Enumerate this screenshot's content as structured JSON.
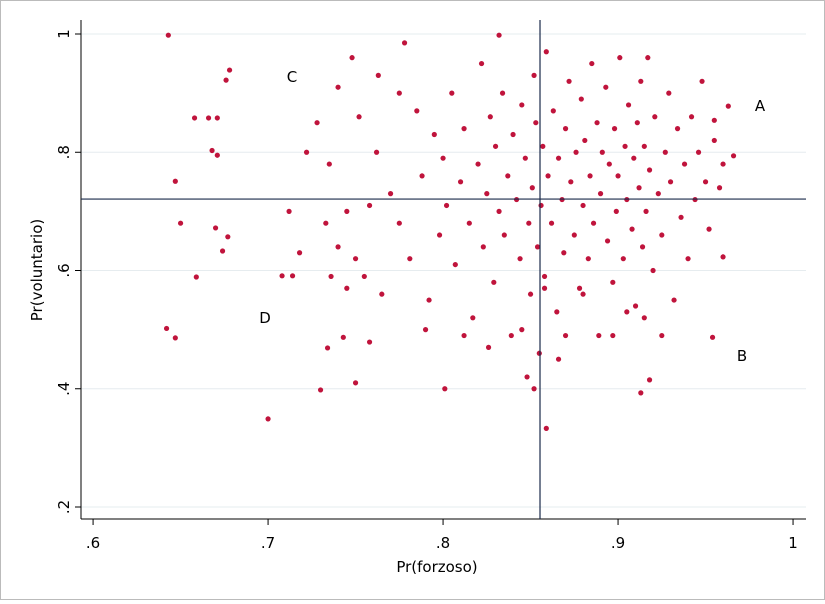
{
  "chart_data": {
    "type": "scatter",
    "x_label": "Pr(forzoso)",
    "y_label": "Pr(voluntario)",
    "color": "#c0143c",
    "grid": true,
    "xlim": [
      0.5931,
      1.0074
    ],
    "ylim": [
      0.1797,
      1.0237
    ],
    "xticks": [
      {
        "value": 0.6,
        "label": ".6"
      },
      {
        "value": 0.7,
        "label": ".7"
      },
      {
        "value": 0.8,
        "label": ".8"
      },
      {
        "value": 0.9,
        "label": ".9"
      },
      1
    ],
    "yticks": [
      {
        "value": 0.2,
        "label": ".2"
      },
      {
        "value": 0.4,
        "label": ".4"
      },
      {
        "value": 0.6,
        "label": ".6"
      },
      {
        "value": 0.8,
        "label": ".8"
      },
      1
    ],
    "reference_lines": {
      "x": 0.8554,
      "y": 0.7208
    },
    "annotations": [
      "C",
      "A",
      "D",
      "B"
    ],
    "x": [
      0.643,
      0.647,
      0.65,
      0.658,
      0.666,
      0.671,
      0.668,
      0.671,
      0.676,
      0.678,
      0.642,
      0.647,
      0.659,
      0.67,
      0.674,
      0.677,
      0.7,
      0.714,
      0.708,
      0.73,
      0.75,
      0.734,
      0.743,
      0.758,
      0.778,
      0.832,
      0.859,
      0.913,
      0.918,
      0.954,
      0.96,
      0.955,
      0.963,
      0.966,
      0.762,
      0.77,
      0.775,
      0.781,
      0.785,
      0.788,
      0.792,
      0.795,
      0.798,
      0.8,
      0.802,
      0.805,
      0.807,
      0.81,
      0.812,
      0.815,
      0.817,
      0.82,
      0.822,
      0.823,
      0.825,
      0.827,
      0.829,
      0.83,
      0.832,
      0.834,
      0.835,
      0.837,
      0.839,
      0.84,
      0.842,
      0.844,
      0.845,
      0.847,
      0.849,
      0.85,
      0.851,
      0.852,
      0.853,
      0.854,
      0.856,
      0.857,
      0.858,
      0.859,
      0.86,
      0.862,
      0.863,
      0.865,
      0.866,
      0.868,
      0.869,
      0.87,
      0.872,
      0.873,
      0.875,
      0.876,
      0.878,
      0.879,
      0.88,
      0.881,
      0.883,
      0.884,
      0.885,
      0.886,
      0.888,
      0.889,
      0.89,
      0.891,
      0.893,
      0.894,
      0.895,
      0.897,
      0.898,
      0.899,
      0.9,
      0.901,
      0.903,
      0.904,
      0.905,
      0.906,
      0.908,
      0.909,
      0.91,
      0.911,
      0.912,
      0.913,
      0.914,
      0.915,
      0.916,
      0.917,
      0.918,
      0.92,
      0.921,
      0.923,
      0.925,
      0.927,
      0.929,
      0.93,
      0.932,
      0.934,
      0.936,
      0.938,
      0.94,
      0.942,
      0.944,
      0.946,
      0.948,
      0.95,
      0.952,
      0.955,
      0.958,
      0.96,
      0.763,
      0.748,
      0.752,
      0.745,
      0.74,
      0.735,
      0.728,
      0.755,
      0.758,
      0.765,
      0.74,
      0.75,
      0.733,
      0.722,
      0.712,
      0.718,
      0.745,
      0.736,
      0.775,
      0.79,
      0.801,
      0.812,
      0.826,
      0.845,
      0.848,
      0.852,
      0.866,
      0.87,
      0.88,
      0.897,
      0.905,
      0.915,
      0.925,
      0.855,
      0.858
    ],
    "values": [
      0.998,
      0.751,
      0.68,
      0.858,
      0.858,
      0.858,
      0.803,
      0.795,
      0.922,
      0.939,
      0.502,
      0.486,
      0.589,
      0.672,
      0.633,
      0.657,
      0.349,
      0.591,
      0.591,
      0.398,
      0.41,
      0.469,
      0.487,
      0.479,
      0.985,
      0.998,
      0.333,
      0.393,
      0.415,
      0.487,
      0.623,
      0.854,
      0.878,
      0.794,
      0.8,
      0.73,
      0.68,
      0.62,
      0.87,
      0.76,
      0.55,
      0.83,
      0.66,
      0.79,
      0.71,
      0.9,
      0.61,
      0.75,
      0.84,
      0.68,
      0.52,
      0.78,
      0.95,
      0.64,
      0.73,
      0.86,
      0.58,
      0.81,
      0.7,
      0.9,
      0.66,
      0.76,
      0.49,
      0.83,
      0.72,
      0.62,
      0.88,
      0.79,
      0.68,
      0.56,
      0.74,
      0.93,
      0.85,
      0.64,
      0.71,
      0.81,
      0.59,
      0.97,
      0.76,
      0.68,
      0.87,
      0.53,
      0.79,
      0.72,
      0.63,
      0.84,
      0.92,
      0.75,
      0.66,
      0.8,
      0.57,
      0.89,
      0.71,
      0.82,
      0.62,
      0.76,
      0.95,
      0.68,
      0.85,
      0.49,
      0.73,
      0.8,
      0.91,
      0.65,
      0.78,
      0.58,
      0.84,
      0.7,
      0.76,
      0.96,
      0.62,
      0.81,
      0.72,
      0.88,
      0.67,
      0.79,
      0.54,
      0.85,
      0.74,
      0.92,
      0.64,
      0.81,
      0.7,
      0.96,
      0.77,
      0.6,
      0.86,
      0.73,
      0.66,
      0.8,
      0.9,
      0.75,
      0.55,
      0.84,
      0.69,
      0.78,
      0.62,
      0.86,
      0.72,
      0.8,
      0.92,
      0.75,
      0.67,
      0.82,
      0.74,
      0.78,
      0.93,
      0.96,
      0.86,
      0.7,
      0.64,
      0.78,
      0.85,
      0.59,
      0.71,
      0.56,
      0.91,
      0.62,
      0.68,
      0.8,
      0.7,
      0.63,
      0.57,
      0.59,
      0.9,
      0.5,
      0.4,
      0.49,
      0.47,
      0.5,
      0.42,
      0.4,
      0.45,
      0.49,
      0.56,
      0.49,
      0.53,
      0.52,
      0.49,
      0.46,
      0.57
    ]
  }
}
